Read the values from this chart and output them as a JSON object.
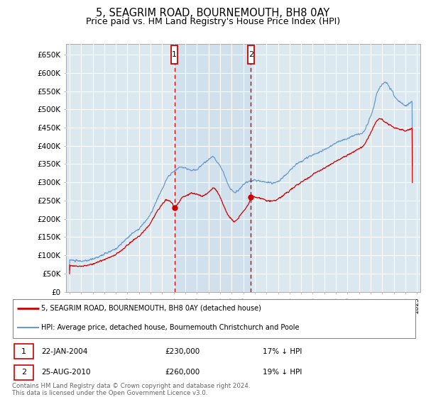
{
  "title": "5, SEAGRIM ROAD, BOURNEMOUTH, BH8 0AY",
  "subtitle": "Price paid vs. HM Land Registry's House Price Index (HPI)",
  "title_fontsize": 10.5,
  "subtitle_fontsize": 9,
  "ylabel_vals": [
    0,
    50000,
    100000,
    150000,
    200000,
    250000,
    300000,
    350000,
    400000,
    450000,
    500000,
    550000,
    600000,
    650000
  ],
  "ylabel_labels": [
    "£0",
    "£50K",
    "£100K",
    "£150K",
    "£200K",
    "£250K",
    "£300K",
    "£350K",
    "£400K",
    "£450K",
    "£500K",
    "£550K",
    "£600K",
    "£650K"
  ],
  "ylim": [
    0,
    680000
  ],
  "xlim_start": 1994.7,
  "xlim_end": 2025.3,
  "grid_color": "#ffffff",
  "plot_bg_color": "#dce8f0",
  "red_line_color": "#cc0000",
  "blue_line_color": "#6699cc",
  "vline_color": "#cc0000",
  "vline1_x": 2004.05,
  "vline2_x": 2010.65,
  "marker1_label": "1",
  "marker2_label": "2",
  "sale1_price_y": 230000,
  "sale2_price_y": 260000,
  "sale1_date": "22-JAN-2004",
  "sale1_price": "£230,000",
  "sale1_note": "17% ↓ HPI",
  "sale2_date": "25-AUG-2010",
  "sale2_price": "£260,000",
  "sale2_note": "19% ↓ HPI",
  "legend_label1": "5, SEAGRIM ROAD, BOURNEMOUTH, BH8 0AY (detached house)",
  "legend_label2": "HPI: Average price, detached house, Bournemouth Christchurch and Poole",
  "footnote": "Contains HM Land Registry data © Crown copyright and database right 2024.\nThis data is licensed under the Open Government Licence v3.0."
}
